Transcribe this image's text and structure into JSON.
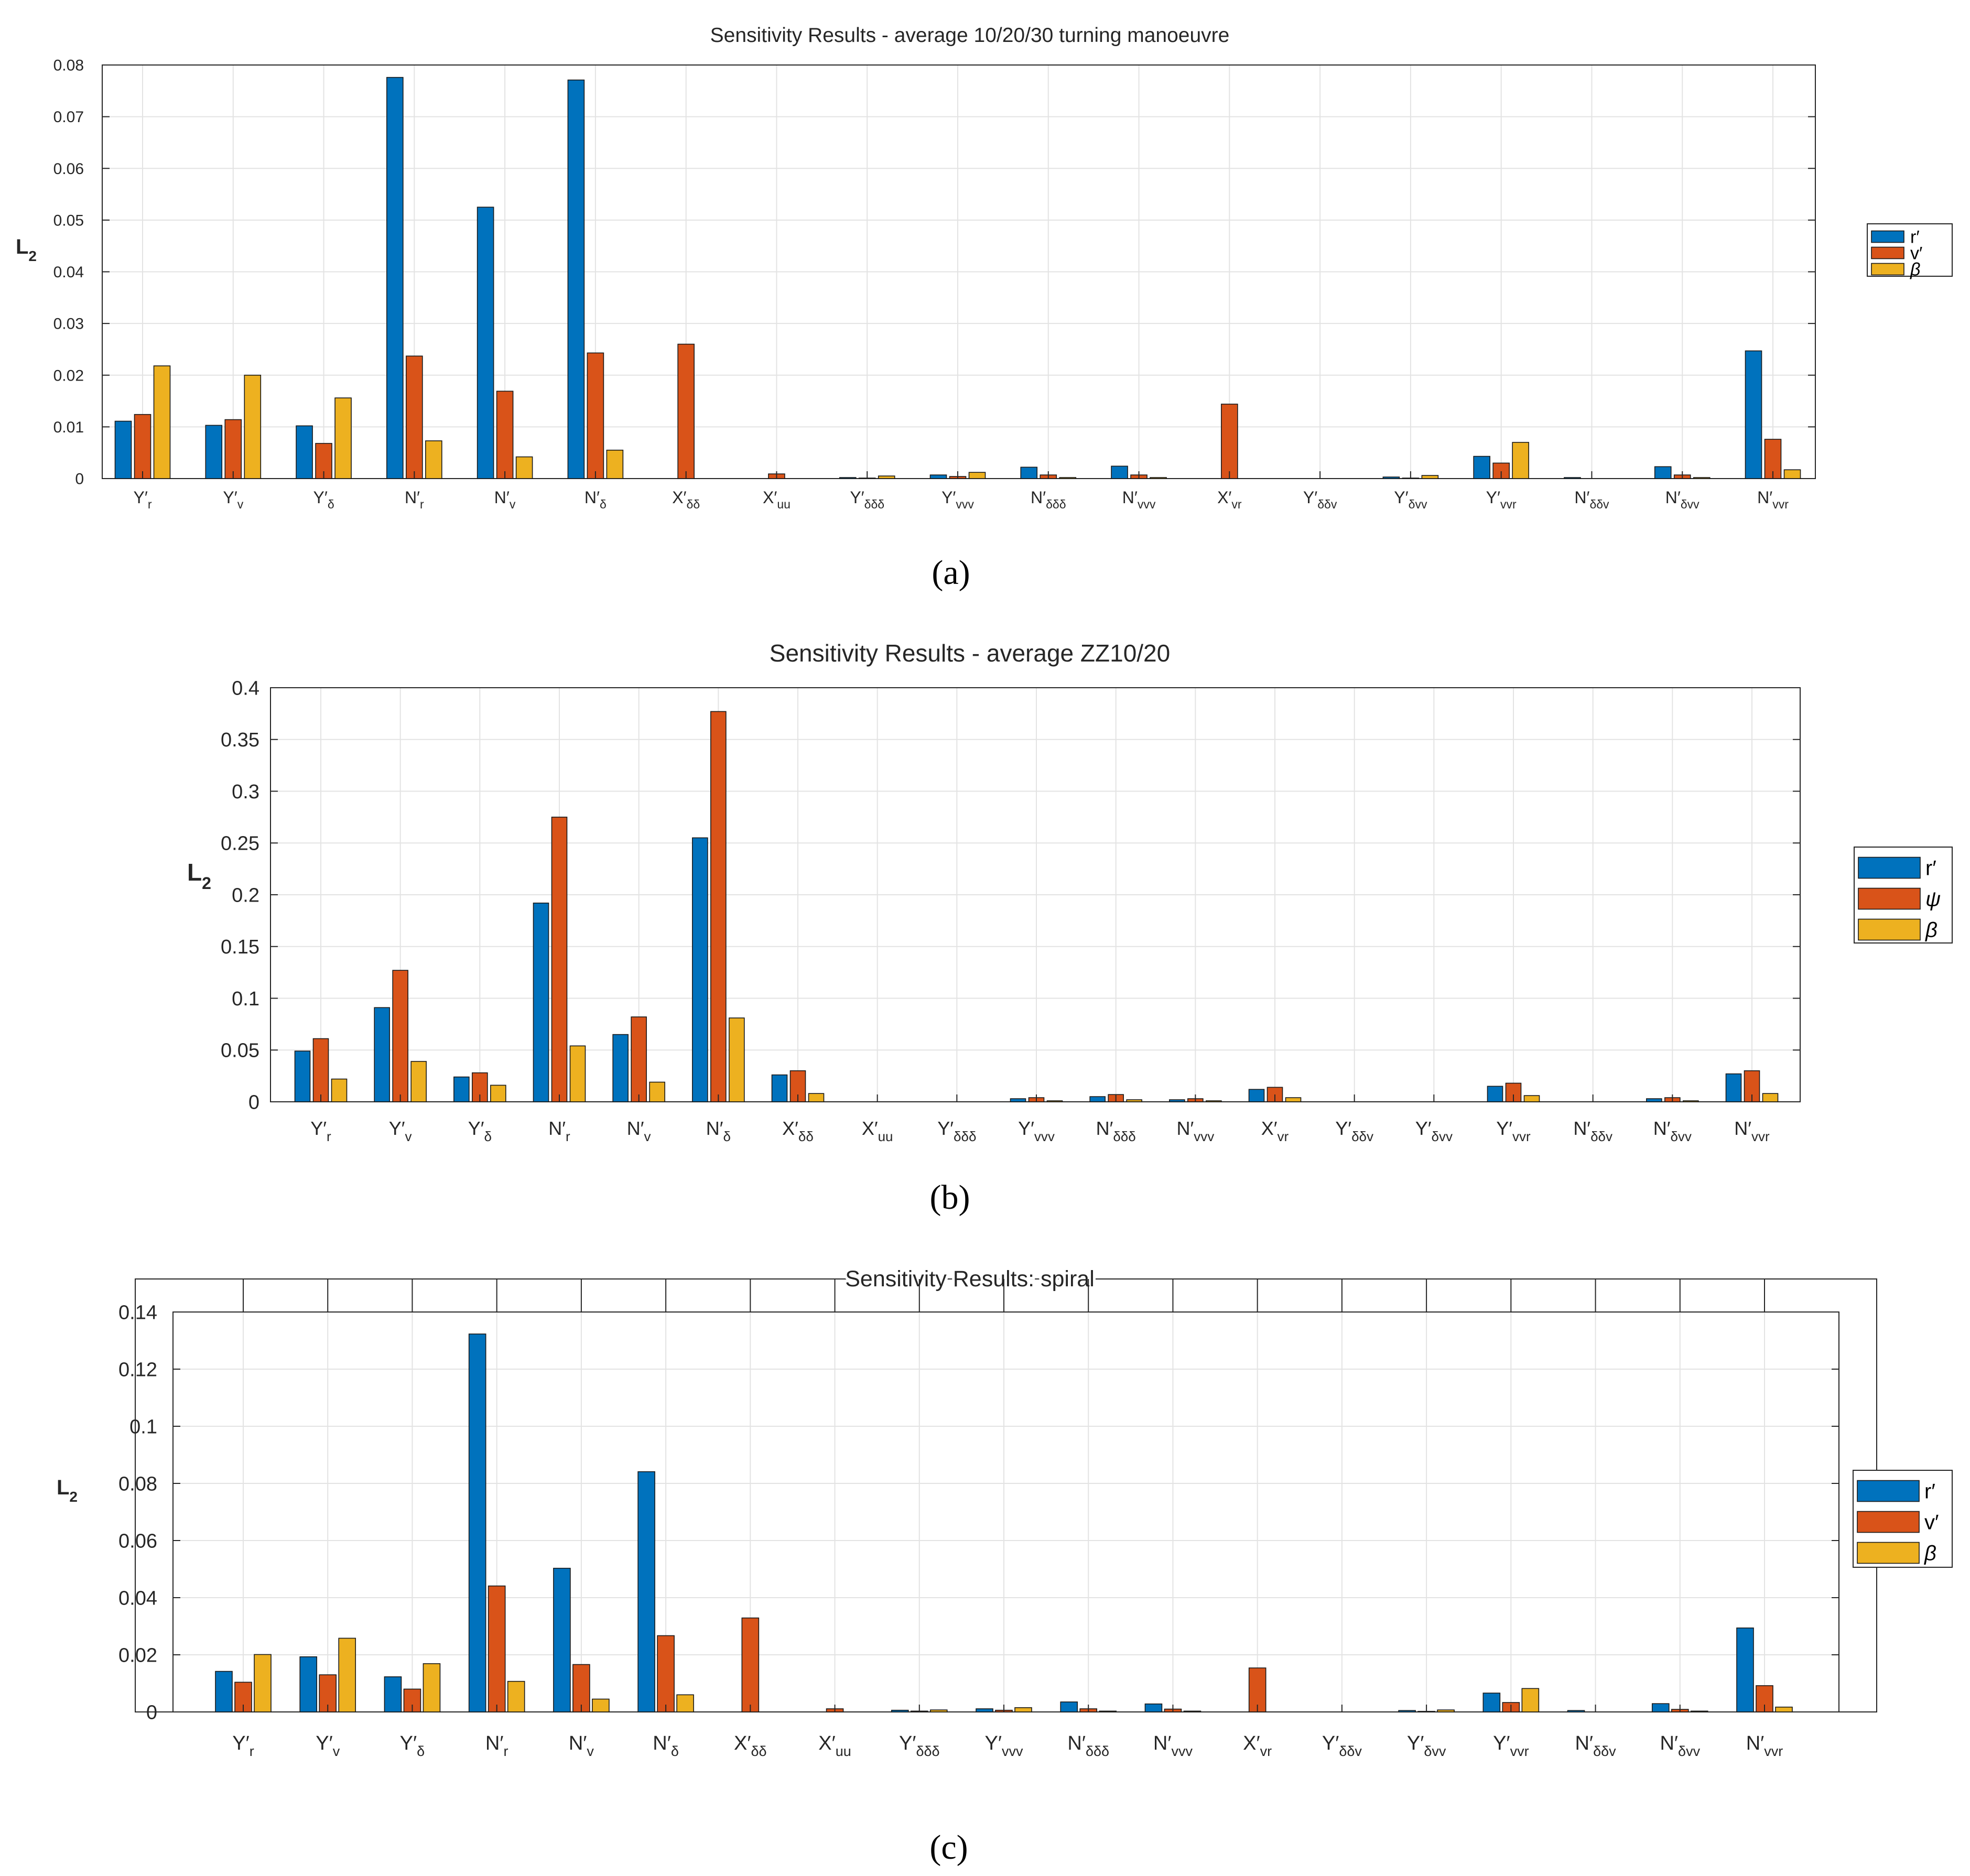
{
  "chart_data": [
    {
      "type": "bar",
      "panel": "(a)",
      "title": "Sensitivity Results - average 10/20/30 turning manoeuvre",
      "xlabel": "",
      "ylabel": "L2",
      "ylim": [
        0,
        0.08
      ],
      "yticks": [
        "0",
        "0.01",
        "0.02",
        "0.03",
        "0.04",
        "0.05",
        "0.06",
        "0.07",
        "0.08"
      ],
      "grid": true,
      "legend_position": "right",
      "categories": [
        "Y′r",
        "Y′v",
        "Y′δ",
        "N′r",
        "N′v",
        "N′δ",
        "X′δδ",
        "X′uu",
        "Y′δδδ",
        "Y′vvv",
        "N′δδδ",
        "N′vvv",
        "X′vr",
        "Y′δδv",
        "Y′δvv",
        "Y′vvr",
        "N′δδv",
        "N′δvv",
        "N′vvr"
      ],
      "series": [
        {
          "name": "r′",
          "color": "#0072BD",
          "values": [
            0.0111,
            0.0103,
            0.0102,
            0.0776,
            0.0525,
            0.0771,
            0.0,
            0.0,
            0.0002,
            0.0007,
            0.0022,
            0.0024,
            0.0,
            0.0,
            0.0003,
            0.0043,
            0.0002,
            0.0023,
            0.0247
          ]
        },
        {
          "name": "v′",
          "color": "#D95319",
          "values": [
            0.0124,
            0.0114,
            0.0068,
            0.0237,
            0.0169,
            0.0243,
            0.026,
            0.0009,
            0.0001,
            0.0004,
            0.0007,
            0.0007,
            0.0144,
            0.0,
            0.0001,
            0.003,
            0.0,
            0.0007,
            0.0076
          ]
        },
        {
          "name": "β",
          "color": "#EDB120",
          "values": [
            0.0218,
            0.02,
            0.0156,
            0.0073,
            0.0042,
            0.0055,
            0.0,
            0.0,
            0.0005,
            0.0012,
            0.0002,
            0.0002,
            0.0,
            0.0,
            0.0006,
            0.007,
            0.0,
            0.0002,
            0.0017
          ]
        }
      ]
    },
    {
      "type": "bar",
      "panel": "(b)",
      "title": "Sensitivity Results - average ZZ10/20",
      "xlabel": "",
      "ylabel": "L2",
      "ylim": [
        0,
        0.4
      ],
      "yticks": [
        "0",
        "0.05",
        "0.1",
        "0.15",
        "0.2",
        "0.25",
        "0.3",
        "0.35",
        "0.4"
      ],
      "grid": true,
      "legend_position": "right",
      "categories": [
        "Y′r",
        "Y′v",
        "Y′δ",
        "N′r",
        "N′v",
        "N′δ",
        "X′δδ",
        "X′uu",
        "Y′δδδ",
        "Y′vvv",
        "N′δδδ",
        "N′vvv",
        "X′vr",
        "Y′δδv",
        "Y′δvv",
        "Y′vvr",
        "N′δδv",
        "N′δvv",
        "N′vvr"
      ],
      "series": [
        {
          "name": "r′",
          "color": "#0072BD",
          "values": [
            0.049,
            0.091,
            0.024,
            0.192,
            0.065,
            0.255,
            0.026,
            0.0,
            0.0,
            0.003,
            0.005,
            0.002,
            0.012,
            0.0,
            0.0,
            0.015,
            0.0,
            0.003,
            0.027
          ]
        },
        {
          "name": "ψ",
          "color": "#D95319",
          "values": [
            0.061,
            0.127,
            0.028,
            0.275,
            0.082,
            0.377,
            0.03,
            0.0,
            0.0,
            0.004,
            0.007,
            0.003,
            0.014,
            0.0,
            0.0,
            0.018,
            0.0,
            0.004,
            0.03
          ]
        },
        {
          "name": "β",
          "color": "#EDB120",
          "values": [
            0.022,
            0.039,
            0.016,
            0.054,
            0.019,
            0.081,
            0.008,
            0.0,
            0.0,
            0.001,
            0.002,
            0.001,
            0.004,
            0.0,
            0.0,
            0.006,
            0.0,
            0.001,
            0.008
          ]
        }
      ]
    },
    {
      "type": "bar",
      "panel": "(c)",
      "title": "Sensitivity Results: spiral",
      "xlabel": "",
      "ylabel": "L2",
      "ylim": [
        0,
        0.14
      ],
      "yticks": [
        "0",
        "0.02",
        "0.04",
        "0.06",
        "0.08",
        "0.1",
        "0.12",
        "0.14"
      ],
      "grid": true,
      "legend_position": "right",
      "categories": [
        "Y′r",
        "Y′v",
        "Y′δ",
        "N′r",
        "N′v",
        "N′δ",
        "X′δδ",
        "X′uu",
        "Y′δδδ",
        "Y′vvv",
        "N′δδδ",
        "N′vvv",
        "X′vr",
        "Y′δδv",
        "Y′δvv",
        "Y′vvr",
        "N′δδv",
        "N′δvv",
        "N′vvr"
      ],
      "series": [
        {
          "name": "r′",
          "color": "#0072BD",
          "values": [
            0.0142,
            0.0193,
            0.0123,
            0.1323,
            0.0503,
            0.0841,
            0.0,
            0.0,
            0.0006,
            0.0011,
            0.0035,
            0.0028,
            0.0,
            0.0,
            0.0005,
            0.0066,
            0.0005,
            0.0029,
            0.0294
          ]
        },
        {
          "name": "v′",
          "color": "#D95319",
          "values": [
            0.0104,
            0.013,
            0.008,
            0.0441,
            0.0166,
            0.0267,
            0.0329,
            0.0011,
            0.0003,
            0.0006,
            0.0011,
            0.001,
            0.0154,
            0.0,
            0.0002,
            0.0033,
            0.0,
            0.0009,
            0.0092
          ]
        },
        {
          "name": "β",
          "color": "#EDB120",
          "values": [
            0.0201,
            0.0258,
            0.0169,
            0.0107,
            0.0045,
            0.006,
            0.0,
            0.0,
            0.0007,
            0.0015,
            0.0003,
            0.0003,
            0.0,
            0.0,
            0.0007,
            0.0082,
            0.0,
            0.0003,
            0.0017
          ]
        }
      ]
    }
  ]
}
